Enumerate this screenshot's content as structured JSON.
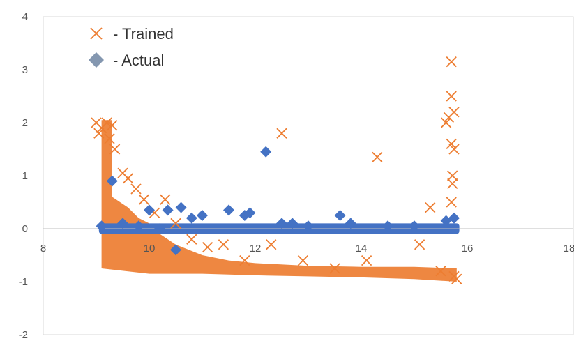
{
  "chart_data": {
    "type": "scatter",
    "xlim": [
      8,
      18
    ],
    "ylim": [
      -2,
      4
    ],
    "x_ticks": [
      "8",
      "10",
      "12",
      "14",
      "16",
      "18"
    ],
    "y_ticks": [
      "-2",
      "-1",
      "0",
      "1",
      "2",
      "3",
      "4"
    ],
    "grid": false,
    "legend_position": "top-left",
    "legend": [
      {
        "series": "trained",
        "label": "- Trained"
      },
      {
        "series": "actual",
        "label": "- Actual"
      }
    ],
    "colors": {
      "trained": "#ED7D31",
      "actual": "#4472C4",
      "legend_actual": "#8497B0",
      "axis": "#bfbfbf"
    },
    "series": [
      {
        "name": "- Trained",
        "marker": "x",
        "points": [
          [
            9.0,
            2.0
          ],
          [
            9.05,
            1.8
          ],
          [
            9.1,
            1.9
          ],
          [
            9.2,
            2.0
          ],
          [
            9.25,
            1.7
          ],
          [
            9.3,
            1.95
          ],
          [
            9.35,
            1.5
          ],
          [
            9.5,
            1.05
          ],
          [
            9.6,
            0.95
          ],
          [
            9.75,
            0.75
          ],
          [
            9.9,
            0.55
          ],
          [
            10.1,
            0.3
          ],
          [
            10.3,
            0.55
          ],
          [
            10.5,
            0.1
          ],
          [
            10.8,
            -0.2
          ],
          [
            11.1,
            -0.35
          ],
          [
            11.4,
            -0.3
          ],
          [
            11.8,
            -0.6
          ],
          [
            12.3,
            -0.3
          ],
          [
            12.5,
            1.8
          ],
          [
            12.9,
            -0.6
          ],
          [
            13.5,
            -0.75
          ],
          [
            14.1,
            -0.6
          ],
          [
            14.3,
            1.35
          ],
          [
            15.1,
            -0.3
          ],
          [
            15.3,
            0.4
          ],
          [
            15.5,
            -0.8
          ],
          [
            15.6,
            2.0
          ],
          [
            15.65,
            2.1
          ],
          [
            15.7,
            3.15
          ],
          [
            15.7,
            2.5
          ],
          [
            15.7,
            1.6
          ],
          [
            15.72,
            1.0
          ],
          [
            15.72,
            0.85
          ],
          [
            15.7,
            0.5
          ],
          [
            15.75,
            2.2
          ],
          [
            15.75,
            1.5
          ],
          [
            15.75,
            -0.9
          ],
          [
            15.8,
            -0.95
          ]
        ]
      },
      {
        "name": "- Actual",
        "marker": "diamond",
        "points": [
          [
            9.1,
            0.05
          ],
          [
            9.3,
            0.9
          ],
          [
            9.5,
            0.1
          ],
          [
            9.8,
            0.05
          ],
          [
            10.0,
            0.35
          ],
          [
            10.2,
            0.0
          ],
          [
            10.35,
            0.35
          ],
          [
            10.6,
            0.4
          ],
          [
            10.8,
            0.2
          ],
          [
            11.0,
            0.25
          ],
          [
            11.5,
            0.35
          ],
          [
            11.8,
            0.25
          ],
          [
            11.9,
            0.3
          ],
          [
            12.2,
            1.45
          ],
          [
            12.5,
            0.1
          ],
          [
            12.7,
            0.1
          ],
          [
            13.0,
            0.05
          ],
          [
            13.6,
            0.25
          ],
          [
            13.8,
            0.1
          ],
          [
            14.5,
            0.05
          ],
          [
            15.0,
            0.05
          ],
          [
            15.6,
            0.15
          ],
          [
            15.75,
            0.2
          ],
          [
            10.5,
            -0.4
          ]
        ]
      }
    ]
  }
}
